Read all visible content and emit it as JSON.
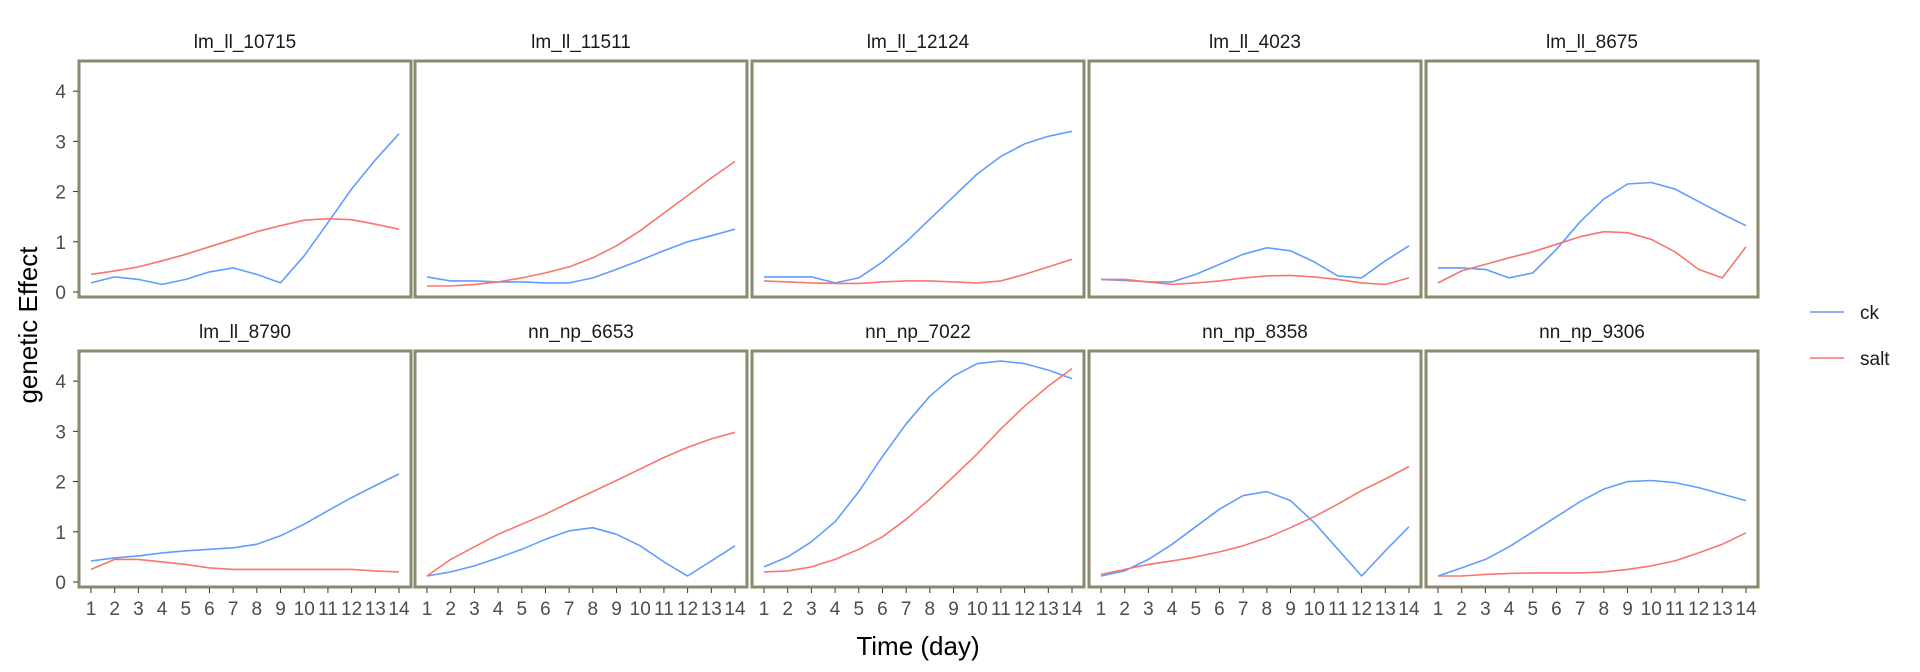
{
  "chart_data": {
    "type": "line",
    "xlabel": "Time (day)",
    "ylabel": "genetic Effect",
    "x": [
      1,
      2,
      3,
      4,
      5,
      6,
      7,
      8,
      9,
      10,
      11,
      12,
      13,
      14
    ],
    "x_tick_labels": [
      "1",
      "2",
      "3",
      "4",
      "5",
      "6",
      "7",
      "8",
      "9",
      "10",
      "11",
      "12",
      "13",
      "14"
    ],
    "ylim": [
      -0.1,
      4.6
    ],
    "y_ticks": [
      0,
      1,
      2,
      3,
      4
    ],
    "grid": false,
    "legend": {
      "position": "right",
      "entries": [
        {
          "name": "ck",
          "color": "#619CFF"
        },
        {
          "name": "salt",
          "color": "#F8766D"
        }
      ]
    },
    "panels": [
      {
        "title": "lm_ll_10715",
        "ck": [
          0.18,
          0.3,
          0.25,
          0.15,
          0.25,
          0.4,
          0.48,
          0.35,
          0.18,
          0.72,
          1.38,
          2.05,
          2.63,
          3.15
        ],
        "salt": [
          0.35,
          0.42,
          0.5,
          0.62,
          0.75,
          0.9,
          1.05,
          1.2,
          1.32,
          1.43,
          1.46,
          1.44,
          1.35,
          1.25
        ]
      },
      {
        "title": "lm_ll_11511",
        "ck": [
          0.3,
          0.22,
          0.22,
          0.2,
          0.2,
          0.18,
          0.18,
          0.28,
          0.45,
          0.63,
          0.82,
          1.0,
          1.12,
          1.25
        ],
        "salt": [
          0.12,
          0.12,
          0.15,
          0.2,
          0.28,
          0.38,
          0.5,
          0.68,
          0.92,
          1.22,
          1.57,
          1.92,
          2.27,
          2.6
        ]
      },
      {
        "title": "lm_ll_12124",
        "ck": [
          0.3,
          0.3,
          0.3,
          0.18,
          0.28,
          0.6,
          1.0,
          1.45,
          1.9,
          2.35,
          2.7,
          2.95,
          3.1,
          3.2
        ],
        "salt": [
          0.22,
          0.2,
          0.18,
          0.17,
          0.17,
          0.2,
          0.22,
          0.22,
          0.2,
          0.18,
          0.22,
          0.35,
          0.5,
          0.65
        ]
      },
      {
        "title": "lm_ll_4023",
        "ck": [
          0.25,
          0.23,
          0.2,
          0.2,
          0.35,
          0.55,
          0.75,
          0.88,
          0.82,
          0.6,
          0.32,
          0.28,
          0.62,
          0.92
        ],
        "salt": [
          0.25,
          0.25,
          0.2,
          0.15,
          0.18,
          0.22,
          0.28,
          0.32,
          0.33,
          0.3,
          0.25,
          0.18,
          0.15,
          0.28
        ]
      },
      {
        "title": "lm_ll_8675",
        "ck": [
          0.48,
          0.48,
          0.45,
          0.28,
          0.38,
          0.85,
          1.4,
          1.85,
          2.15,
          2.18,
          2.05,
          1.8,
          1.55,
          1.32
        ],
        "salt": [
          0.18,
          0.42,
          0.55,
          0.68,
          0.8,
          0.95,
          1.1,
          1.2,
          1.18,
          1.05,
          0.8,
          0.45,
          0.28,
          0.9
        ]
      },
      {
        "title": "lm_ll_8790",
        "ck": [
          0.42,
          0.48,
          0.52,
          0.58,
          0.62,
          0.65,
          0.68,
          0.75,
          0.92,
          1.15,
          1.42,
          1.68,
          1.92,
          2.15
        ],
        "salt": [
          0.25,
          0.45,
          0.45,
          0.4,
          0.35,
          0.28,
          0.25,
          0.25,
          0.25,
          0.25,
          0.25,
          0.25,
          0.22,
          0.2
        ]
      },
      {
        "title": "nn_np_6653",
        "ck": [
          0.12,
          0.2,
          0.32,
          0.48,
          0.65,
          0.85,
          1.02,
          1.08,
          0.95,
          0.72,
          0.4,
          0.12,
          0.42,
          0.72
        ],
        "salt": [
          0.12,
          0.45,
          0.7,
          0.95,
          1.15,
          1.35,
          1.58,
          1.8,
          2.02,
          2.25,
          2.48,
          2.68,
          2.85,
          2.98
        ]
      },
      {
        "title": "nn_np_7022",
        "ck": [
          0.3,
          0.5,
          0.8,
          1.2,
          1.8,
          2.5,
          3.15,
          3.7,
          4.1,
          4.35,
          4.4,
          4.35,
          4.22,
          4.05
        ],
        "salt": [
          0.2,
          0.22,
          0.3,
          0.45,
          0.65,
          0.9,
          1.25,
          1.65,
          2.1,
          2.55,
          3.05,
          3.5,
          3.9,
          4.25
        ]
      },
      {
        "title": "nn_np_8358",
        "ck": [
          0.12,
          0.22,
          0.45,
          0.75,
          1.1,
          1.45,
          1.72,
          1.8,
          1.62,
          1.18,
          0.65,
          0.12,
          0.62,
          1.1
        ],
        "salt": [
          0.15,
          0.25,
          0.35,
          0.42,
          0.5,
          0.6,
          0.72,
          0.88,
          1.08,
          1.3,
          1.55,
          1.82,
          2.05,
          2.3
        ]
      },
      {
        "title": "nn_np_9306",
        "ck": [
          0.12,
          0.28,
          0.45,
          0.7,
          1.0,
          1.3,
          1.6,
          1.85,
          2.0,
          2.02,
          1.98,
          1.88,
          1.75,
          1.62
        ],
        "salt": [
          0.12,
          0.12,
          0.15,
          0.17,
          0.18,
          0.18,
          0.18,
          0.2,
          0.25,
          0.32,
          0.42,
          0.58,
          0.75,
          0.98
        ]
      }
    ]
  }
}
